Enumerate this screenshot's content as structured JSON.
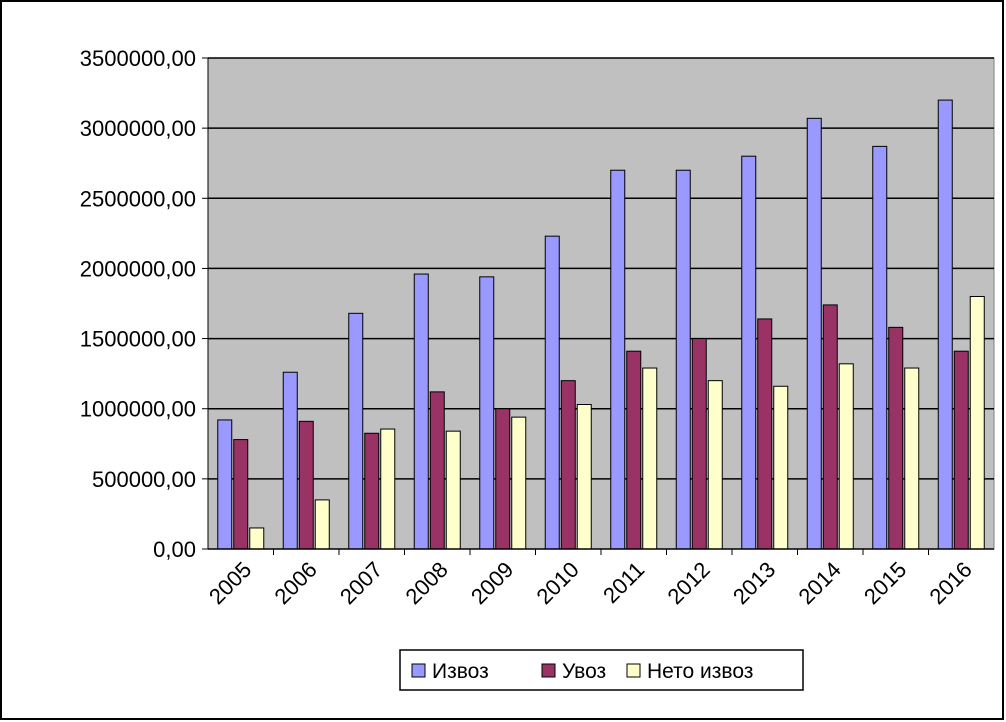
{
  "chart_data": {
    "type": "bar",
    "title": "",
    "xlabel": "",
    "ylabel": "",
    "categories": [
      "2005",
      "2006",
      "2007",
      "2008",
      "2009",
      "2010",
      "2011",
      "2012",
      "2013",
      "2014",
      "2015",
      "2016"
    ],
    "series": [
      {
        "name": "Извоз",
        "color": "#9999ff",
        "values": [
          920000,
          1260000,
          1680000,
          1960000,
          1940000,
          2230000,
          2700000,
          2700000,
          2800000,
          3070000,
          2870000,
          3200000
        ]
      },
      {
        "name": "Увоз",
        "color": "#993366",
        "values": [
          780000,
          910000,
          825000,
          1120000,
          1000000,
          1200000,
          1410000,
          1500000,
          1640000,
          1740000,
          1580000,
          1410000
        ]
      },
      {
        "name": "Нето извоз",
        "color": "#ffffcc",
        "values": [
          150000,
          350000,
          855000,
          840000,
          940000,
          1030000,
          1290000,
          1200000,
          1160000,
          1320000,
          1290000,
          1800000
        ]
      }
    ],
    "ylim": [
      0,
      3500000
    ],
    "yticks": [
      "0,00",
      "500000,00",
      "1000000,00",
      "1500000,00",
      "2000000,00",
      "2500000,00",
      "3000000,00",
      "3500000,00"
    ],
    "grid": true,
    "plot_background": "#c0c0c0",
    "legend_position": "bottom"
  }
}
